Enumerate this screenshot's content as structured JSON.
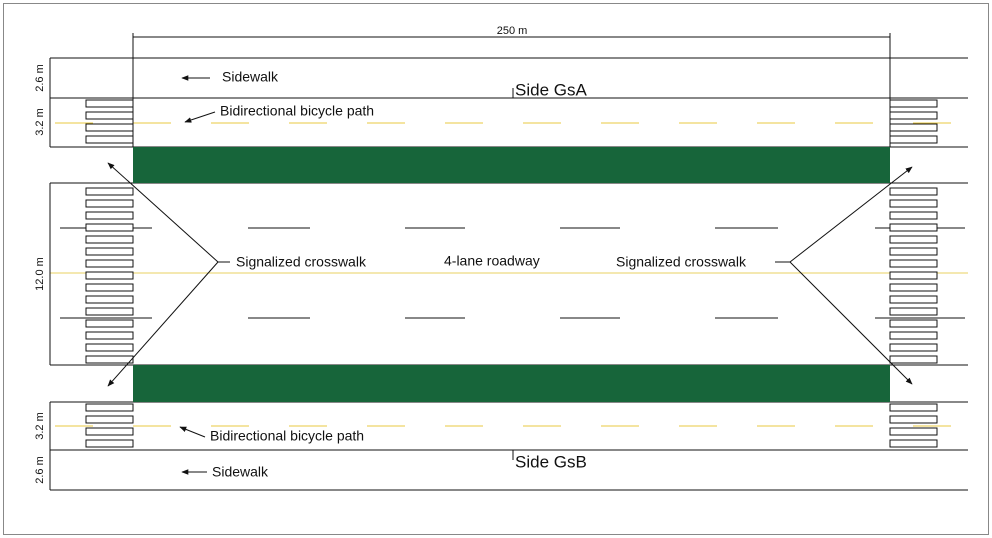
{
  "dimensions": {
    "length": "250 m",
    "sidewalk_top": "2.6 m",
    "bike_top": "3.2 m",
    "roadway": "12.0 m",
    "bike_bottom": "3.2 m",
    "sidewalk_bottom": "2.6 m"
  },
  "labels": {
    "sidewalk_top": "Sidewalk",
    "bike_top": "Bidirectional bicycle path",
    "side_a": "Side GsA",
    "crosswalk_left": "Signalized crosswalk",
    "roadway": "4-lane roadway",
    "crosswalk_right": "Signalized crosswalk",
    "bike_bottom": "Bidirectional bicycle path",
    "side_b": "Side GsB",
    "sidewalk_bottom": "Sidewalk"
  }
}
